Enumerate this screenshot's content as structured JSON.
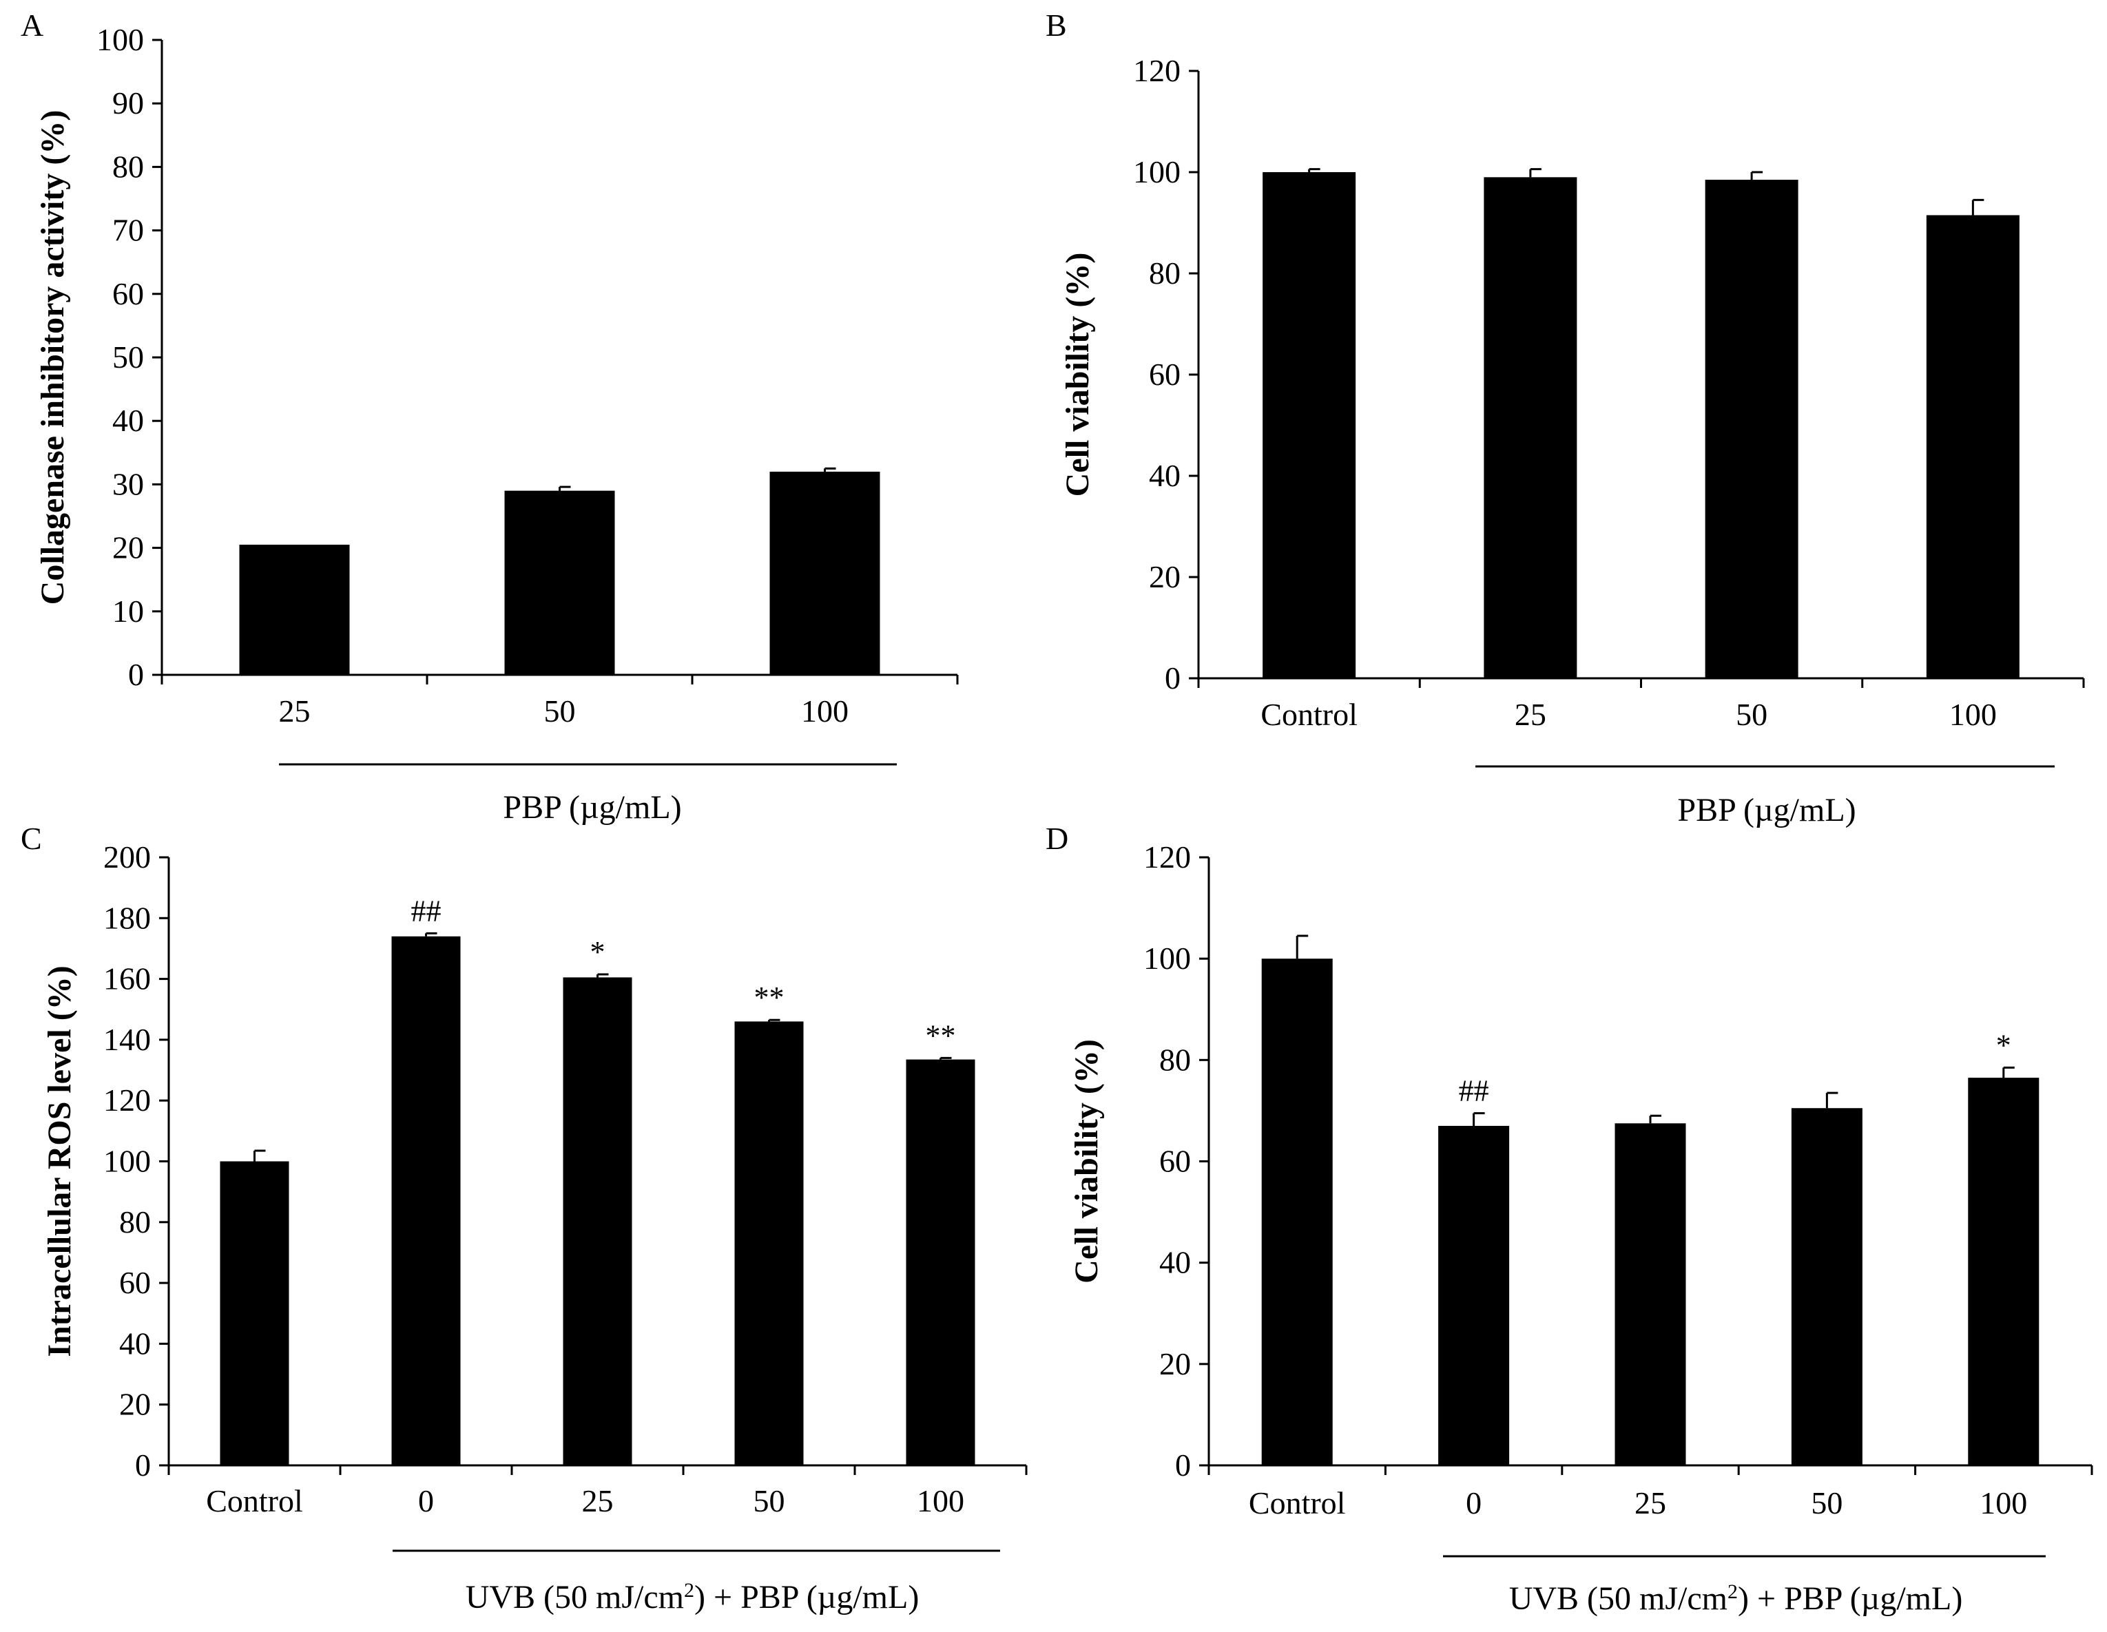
{
  "chart_data": [
    {
      "panel": "A",
      "type": "bar",
      "categories": [
        "25",
        "50",
        "100"
      ],
      "values": [
        20.5,
        29,
        32
      ],
      "errors": [
        0,
        0.6,
        0.5
      ],
      "annotations": [
        "",
        "",
        ""
      ],
      "ylabel": "Collagenase inhibitory activity (%)",
      "xtitle": "PBP (µg/mL)",
      "ylim": [
        0,
        100
      ],
      "yticks": [
        "0",
        "10",
        "20",
        "30",
        "40",
        "50",
        "60",
        "70",
        "80",
        "90",
        "100"
      ]
    },
    {
      "panel": "B",
      "type": "bar",
      "categories": [
        "Control",
        "25",
        "50",
        "100"
      ],
      "values": [
        100,
        99,
        98.5,
        91.5
      ],
      "errors": [
        0.6,
        1.6,
        1.5,
        3
      ],
      "annotations": [
        "",
        "",
        "",
        ""
      ],
      "ylabel": "Cell viability (%)",
      "xtitle": "PBP (µg/mL)",
      "ylim": [
        0,
        120
      ],
      "yticks": [
        "0",
        "20",
        "40",
        "60",
        "80",
        "100",
        "120"
      ]
    },
    {
      "panel": "C",
      "type": "bar",
      "categories": [
        "Control",
        "0",
        "25",
        "50",
        "100"
      ],
      "values": [
        100,
        174,
        160.5,
        146,
        133.5
      ],
      "errors": [
        3.5,
        1,
        1,
        0.5,
        0.5
      ],
      "annotations": [
        "",
        "##",
        "*",
        "**",
        "**"
      ],
      "ylabel": "Intracellular ROS level (%)",
      "xtitle": "UVB (50 mJ/cm",
      "xtitle_sup": "2",
      "xtitle_tail": ") + PBP (µg/mL)",
      "ylim": [
        0,
        200
      ],
      "yticks": [
        "0",
        "20",
        "40",
        "60",
        "80",
        "100",
        "120",
        "140",
        "160",
        "180",
        "200"
      ]
    },
    {
      "panel": "D",
      "type": "bar",
      "categories": [
        "Control",
        "0",
        "25",
        "50",
        "100"
      ],
      "values": [
        100,
        67,
        67.5,
        70.5,
        76.5
      ],
      "errors": [
        4.5,
        2.5,
        1.5,
        3,
        2
      ],
      "annotations": [
        "",
        "##",
        "",
        "",
        "*"
      ],
      "ylabel": "Cell viability (%)",
      "xtitle": "UVB (50 mJ/cm",
      "xtitle_sup": "2",
      "xtitle_tail": ") + PBP (µg/mL)",
      "ylim": [
        0,
        120
      ],
      "yticks": [
        "0",
        "20",
        "40",
        "60",
        "80",
        "100",
        "120"
      ]
    }
  ],
  "colors": {
    "bar": "#000000",
    "axis": "#000000",
    "background": "#ffffff"
  }
}
